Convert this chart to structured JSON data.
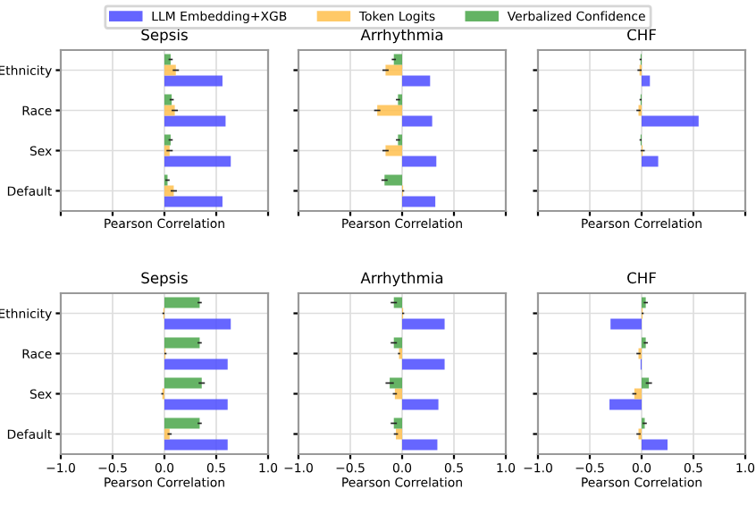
{
  "chart_data": [
    {
      "type": "bar",
      "orientation": "horizontal",
      "title": "Sepsis",
      "xlabel": "Pearson Correlation",
      "categories": [
        "Ethnicity",
        "Race",
        "Sex",
        "Default"
      ],
      "xlim": [
        -1,
        1
      ],
      "xticks": [
        -1,
        -0.5,
        0,
        0.5,
        1
      ],
      "grid": true,
      "legend": "top",
      "tick_labels": "y",
      "series": [
        {
          "name": "LLM Embedding+XGB",
          "color": "#4b4bff",
          "values": [
            0.56,
            0.59,
            0.64,
            0.56
          ]
        },
        {
          "name": "Token Logits",
          "color": "#ffc04d",
          "values": [
            0.11,
            0.1,
            0.05,
            0.09
          ],
          "errors": [
            0.03,
            0.03,
            0.03,
            0.03
          ]
        },
        {
          "name": "Verbalized Confidence",
          "color": "#4aa64a",
          "values": [
            0.06,
            0.07,
            0.06,
            0.03
          ],
          "errors": [
            0.02,
            0.02,
            0.02,
            0.02
          ]
        }
      ]
    },
    {
      "type": "bar",
      "orientation": "horizontal",
      "title": "Arrhythmia",
      "xlabel": "Pearson Correlation",
      "categories": [
        null,
        null,
        null,
        null
      ],
      "xlim": [
        -1,
        1
      ],
      "xticks": [
        -1,
        -0.5,
        0,
        0.5,
        1
      ],
      "grid": true,
      "tick_labels": false,
      "series": [
        {
          "color": "#4b4bff",
          "values": [
            0.27,
            0.29,
            0.33,
            0.32
          ]
        },
        {
          "color": "#ffc04d",
          "values": [
            -0.16,
            -0.24,
            -0.16,
            0.01
          ],
          "errors": [
            0.03,
            0.03,
            0.03,
            0.01
          ]
        },
        {
          "color": "#4aa64a",
          "values": [
            -0.08,
            -0.04,
            -0.04,
            -0.17
          ],
          "errors": [
            0.02,
            0.02,
            0.02,
            0.03
          ]
        }
      ]
    },
    {
      "type": "bar",
      "orientation": "horizontal",
      "title": "CHF",
      "xlabel": "Pearson Correlation",
      "categories": [
        null,
        null,
        null,
        null
      ],
      "xlim": [
        -1,
        1
      ],
      "xticks": [
        -1,
        -0.5,
        0,
        0.5,
        1
      ],
      "grid": true,
      "tick_labels": false,
      "series": [
        {
          "color": "#4b4bff",
          "values": [
            0.08,
            0.55,
            0.16,
            null
          ]
        },
        {
          "color": "#ffc04d",
          "values": [
            -0.02,
            -0.03,
            0.01,
            null
          ],
          "errors": [
            0.02,
            0.02,
            0.02,
            null
          ]
        },
        {
          "color": "#4aa64a",
          "values": [
            -0.01,
            -0.01,
            -0.01,
            null
          ],
          "errors": [
            0.01,
            0.01,
            0.01,
            null
          ]
        }
      ]
    },
    {
      "type": "bar",
      "orientation": "horizontal",
      "title": "Sepsis",
      "xlabel": "Pearson Correlation",
      "categories": [
        "Ethnicity",
        "Race",
        "Sex",
        "Default"
      ],
      "xlim": [
        -1,
        1
      ],
      "xticks": [
        {
          "value": -1,
          "label": "−1.0"
        },
        {
          "value": -0.5,
          "label": "−0.5"
        },
        {
          "value": 0,
          "label": "0.0"
        },
        {
          "value": 0.5,
          "label": "0.5"
        },
        {
          "value": 1,
          "label": "1.0"
        }
      ],
      "grid": true,
      "series": [
        {
          "color": "#4b4bff",
          "values": [
            0.64,
            0.61,
            0.61,
            0.61
          ]
        },
        {
          "color": "#ffc04d",
          "values": [
            -0.01,
            0.01,
            -0.02,
            0.05
          ],
          "errors": [
            0.01,
            0.01,
            0.01,
            0.02
          ]
        },
        {
          "color": "#4aa64a",
          "values": [
            0.34,
            0.34,
            0.36,
            0.34
          ],
          "errors": [
            0.02,
            0.02,
            0.03,
            0.02
          ]
        }
      ]
    },
    {
      "type": "bar",
      "orientation": "horizontal",
      "title": "Arrhythmia",
      "xlabel": "Pearson Correlation",
      "categories": [
        null,
        null,
        null,
        null
      ],
      "xlim": [
        -1,
        1
      ],
      "xticks": [
        {
          "value": -1,
          "label": "−1.0"
        },
        {
          "value": -0.5,
          "label": "−0.5"
        },
        {
          "value": 0,
          "label": "0.0"
        },
        {
          "value": 0.5,
          "label": "0.5"
        },
        {
          "value": 1,
          "label": "1.0"
        }
      ],
      "grid": true,
      "tick_labels": "x",
      "series": [
        {
          "color": "#4b4bff",
          "values": [
            0.41,
            0.41,
            0.35,
            0.34
          ]
        },
        {
          "color": "#ffc04d",
          "values": [
            0.01,
            -0.03,
            -0.07,
            -0.06
          ],
          "errors": [
            0.01,
            0.01,
            0.02,
            0.02
          ]
        },
        {
          "color": "#4aa64a",
          "values": [
            -0.08,
            -0.08,
            -0.12,
            -0.08
          ],
          "errors": [
            0.03,
            0.03,
            0.04,
            0.03
          ]
        }
      ]
    },
    {
      "type": "bar",
      "orientation": "horizontal",
      "title": "CHF",
      "xlabel": "Pearson Correlation",
      "categories": [
        null,
        null,
        null,
        null
      ],
      "xlim": [
        -1,
        1
      ],
      "xticks": [
        {
          "value": -1,
          "label": "−1.0"
        },
        {
          "value": -0.5,
          "label": "−0.5"
        },
        {
          "value": 0,
          "label": "0.0"
        },
        {
          "value": 0.5,
          "label": "0.5"
        },
        {
          "value": 1,
          "label": "1.0"
        }
      ],
      "grid": true,
      "tick_labels": "x",
      "series": [
        {
          "color": "#4b4bff",
          "values": [
            -0.3,
            -0.01,
            -0.31,
            0.25
          ]
        },
        {
          "color": "#ffc04d",
          "values": [
            0.01,
            -0.03,
            -0.07,
            -0.03
          ],
          "errors": [
            0.01,
            0.02,
            0.02,
            0.02
          ]
        },
        {
          "color": "#4aa64a",
          "values": [
            0.04,
            0.04,
            0.07,
            0.03
          ],
          "errors": [
            0.02,
            0.02,
            0.03,
            0.02
          ]
        }
      ]
    }
  ]
}
